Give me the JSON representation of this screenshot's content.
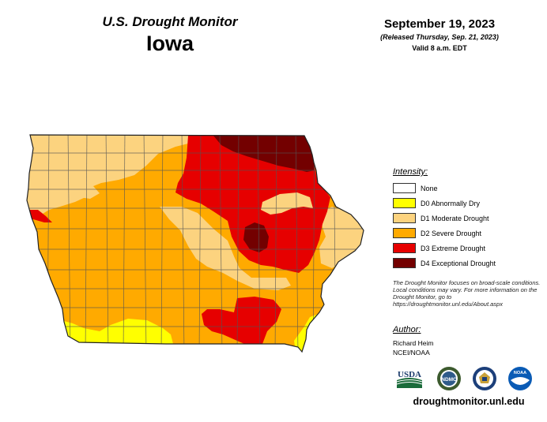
{
  "header": {
    "title": "U.S. Drought Monitor",
    "state": "Iowa",
    "date": "September 19, 2023",
    "released": "(Released Thursday, Sep. 21, 2023)",
    "valid": "Valid 8 a.m. EDT"
  },
  "legend": {
    "title": "Intensity:",
    "items": [
      {
        "label": "None",
        "color": "#ffffff"
      },
      {
        "label": "D0 Abnormally Dry",
        "color": "#ffff00"
      },
      {
        "label": "D1 Moderate Drought",
        "color": "#fcd37f"
      },
      {
        "label": "D2 Severe Drought",
        "color": "#ffaa00"
      },
      {
        "label": "D3 Extreme Drought",
        "color": "#e60000"
      },
      {
        "label": "D4 Exceptional Drought",
        "color": "#730000"
      }
    ]
  },
  "note": "The Drought Monitor focuses on broad-scale conditions. Local conditions may vary. For more information on the Drought Monitor, go to https://droughtmonitor.unl.edu/About.aspx",
  "author": {
    "title": "Author:",
    "name": "Richard Heim",
    "org": "NCEI/NOAA"
  },
  "logos": {
    "usda": "USDA",
    "ndmc": "NDMC",
    "noaa": "NOAA"
  },
  "footer_url": "droughtmonitor.unl.edu"
}
